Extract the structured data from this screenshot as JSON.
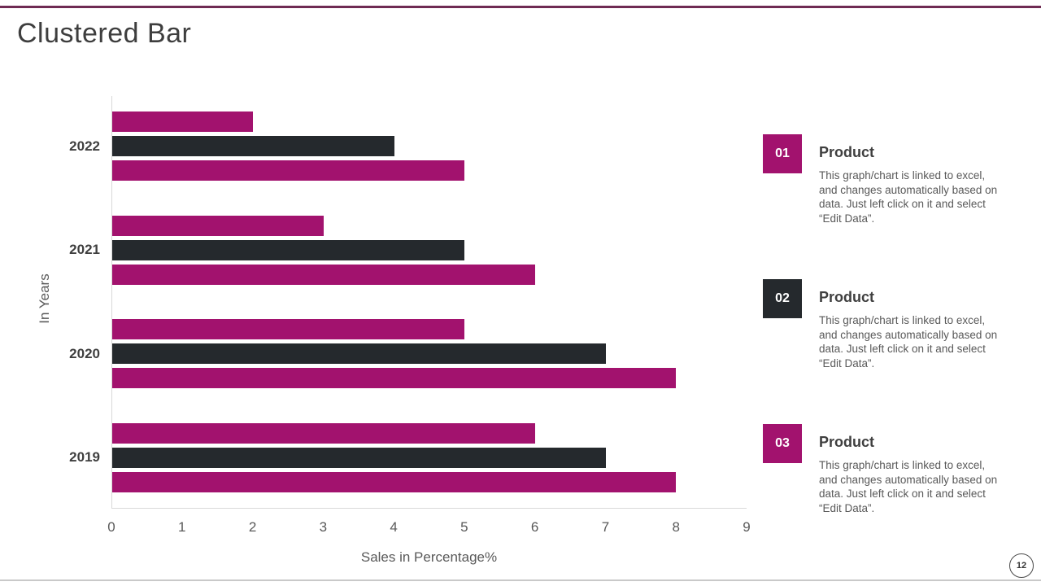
{
  "slide": {
    "title": "Clustered Bar",
    "page_number": "12"
  },
  "colors": {
    "accent_magenta": "#A2126E",
    "accent_dark": "#25292D",
    "top_border": "#6F2B53"
  },
  "chart_data": {
    "type": "bar",
    "orientation": "horizontal",
    "title": "",
    "xlabel": "Sales in Percentage%",
    "ylabel": "In Years",
    "categories": [
      "2022",
      "2021",
      "2020",
      "2019"
    ],
    "series": [
      {
        "name": "cluster-top-bar",
        "color": "#A2126E",
        "values": [
          2,
          3,
          5,
          6
        ]
      },
      {
        "name": "cluster-middle-bar",
        "color": "#25292D",
        "values": [
          4,
          5,
          7,
          7
        ]
      },
      {
        "name": "cluster-bottom-bar",
        "color": "#A2126E",
        "values": [
          5,
          6,
          8,
          8
        ]
      }
    ],
    "xlim": [
      0,
      9
    ],
    "x_ticks": [
      "0",
      "1",
      "2",
      "3",
      "4",
      "5",
      "6",
      "7",
      "8",
      "9"
    ],
    "grid": false,
    "legend": "none"
  },
  "panel": {
    "items": [
      {
        "number": "01",
        "badge_color": "#A2126E",
        "heading": "Product",
        "body": "This graph/chart is linked to excel, and changes automatically based on data. Just left click on it and select “Edit Data”."
      },
      {
        "number": "02",
        "badge_color": "#25292D",
        "heading": "Product",
        "body": "This graph/chart is linked to excel, and changes automatically based on data. Just left click on it and select “Edit Data”."
      },
      {
        "number": "03",
        "badge_color": "#A2126E",
        "heading": "Product",
        "body": "This graph/chart is linked to excel, and changes automatically based on data. Just left click on it and select “Edit Data”."
      }
    ]
  }
}
